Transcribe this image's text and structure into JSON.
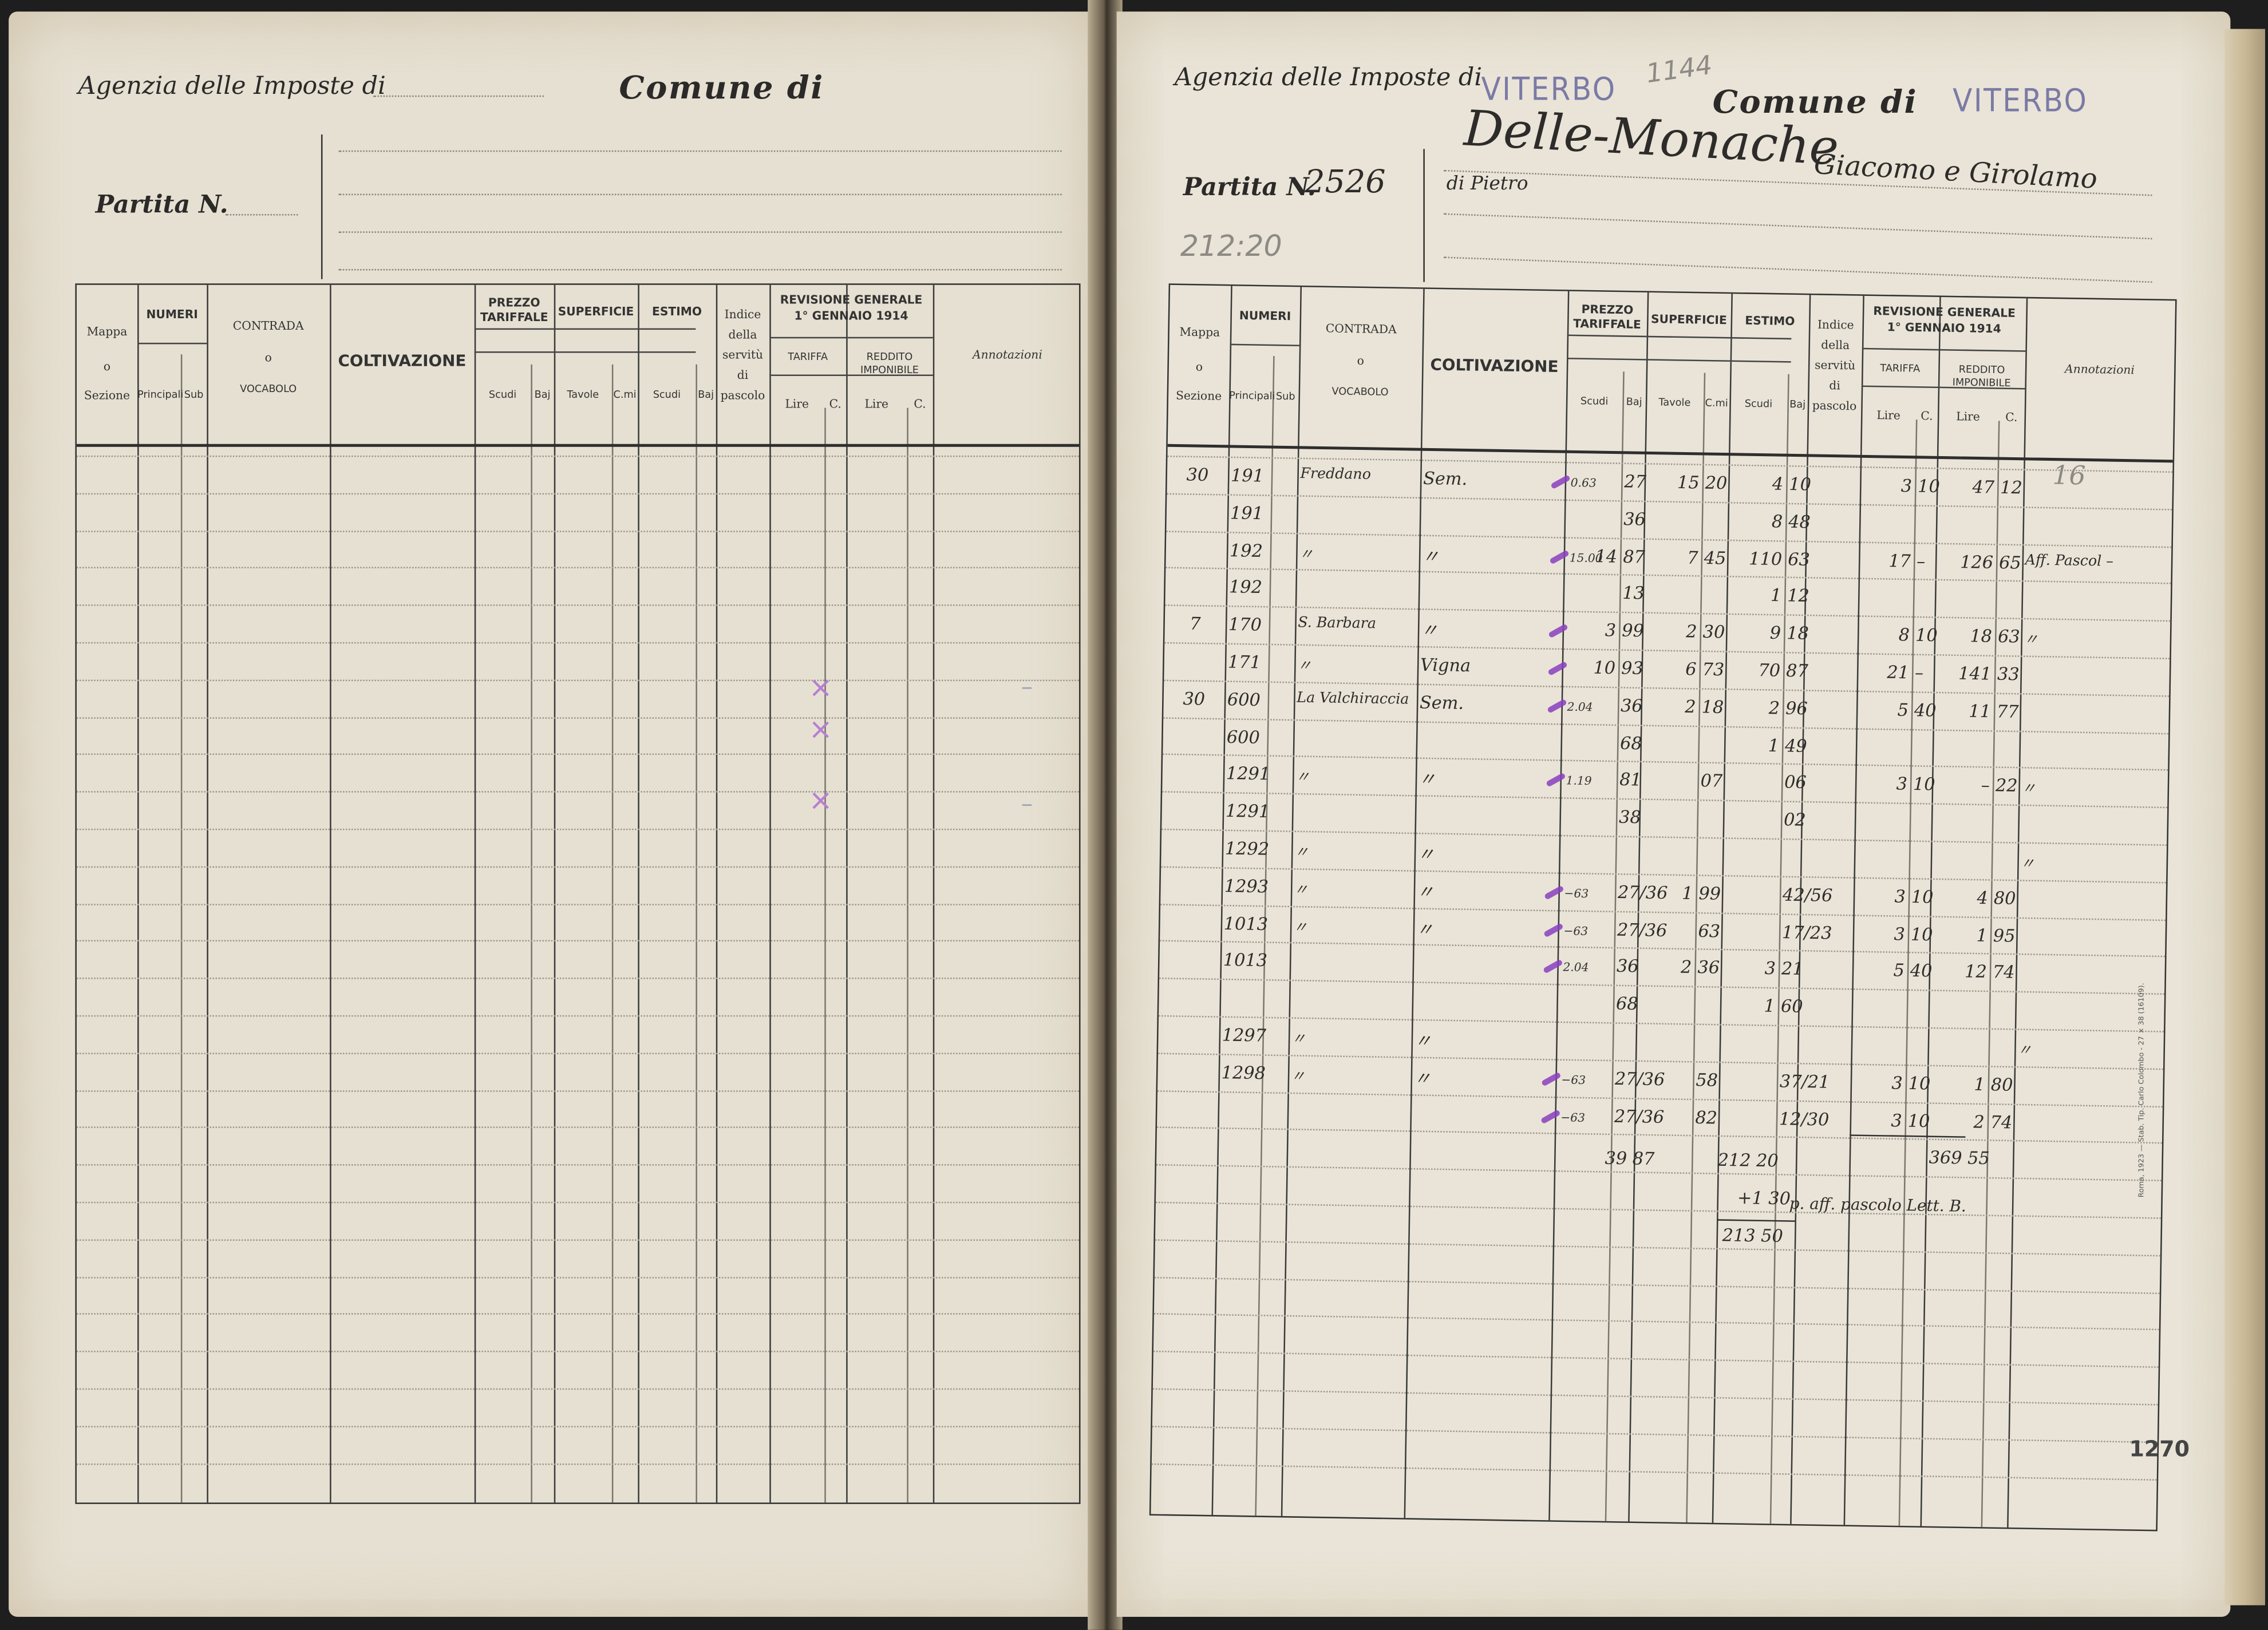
{
  "left_page": {
    "agency_label": "Agenzia delle Imposte di",
    "comune_label": "Comune di",
    "partita_label": "Partita N.",
    "x_marks": [
      "×",
      "×",
      "×"
    ],
    "dash_marks": [
      "–",
      "–"
    ]
  },
  "right_page": {
    "agency_label": "Agenzia delle Imposte di",
    "agency_stamp": "VITERBO",
    "pencil_number": "1144",
    "comune_label": "Comune di",
    "comune_stamp": "VITERBO",
    "partita_label": "Partita N.",
    "partita_number": "2526",
    "pencil_total": "212:20",
    "owner_name": "Delle-Monache",
    "owner_given": "Giacomo e Girolamo",
    "owner_father": "di Pietro",
    "annotation_number": "16",
    "totals": {
      "superficie_subtotal": "39 87",
      "estimo_subtotal": "212 20",
      "estimo_addition": "+1 30",
      "estimo_total": "213 50",
      "reddito_total": "369 55",
      "note": "p. aff. pascolo Lett. B."
    },
    "printer_note": "Roma, 1923 — Stab. Tip. Carlo Colombo - 27 × 38 (16109).",
    "page_number": "1270"
  },
  "table_header": {
    "mappa": [
      "Mappa",
      "o",
      "Sezione"
    ],
    "numeri": "NUMERI",
    "principali": "Principali",
    "sub": "Sub",
    "contrada": [
      "CONTRADA",
      "o",
      "VOCABOLO"
    ],
    "coltivazione": "COLTIVAZIONE",
    "prezzo": [
      "PREZZO",
      "TARIFFALE"
    ],
    "superficie": "SUPERFICIE",
    "estimo": "ESTIMO",
    "scudi": "Scudi",
    "baj": "Baj",
    "tavole": "Tavole",
    "cmi": "C.mi",
    "indice": [
      "Indice",
      "della",
      "servitù",
      "di",
      "pascolo"
    ],
    "revisione": [
      "REVISIONE GENERALE",
      "1° GENNAIO 1914"
    ],
    "tariffa": "TARIFFA",
    "reddito": "REDDITO IMPONIBILE",
    "lire": "Lire",
    "c": "C.",
    "annotazioni": "Annotazioni"
  },
  "rows": [
    {
      "mappa": "30",
      "num": "191",
      "contrada": "Freddano",
      "coltiv": "Sem.",
      "bracket": "0.63",
      "prezzo_b": "27",
      "sup_t": "15",
      "sup_c": "20",
      "est_s": "4",
      "est_b": "10",
      "tar_l": "3",
      "tar_c": "10",
      "red_l": "47",
      "red_c": "12",
      "mark": true
    },
    {
      "num": "191",
      "prezzo_b": "36",
      "est_s": "8",
      "est_b": "48"
    },
    {
      "num": "192",
      "contrada": "〃",
      "coltiv": "〃",
      "bracket": "15.00",
      "prezzo_s": "14",
      "prezzo_b": "87",
      "sup_t": "7",
      "sup_c": "45",
      "est_s": "110",
      "est_b": "63",
      "tar_l": "17",
      "tar_c": "–",
      "red_l": "126",
      "red_c": "65",
      "annot": "Aff. Pascol –",
      "mark": true
    },
    {
      "num": "192",
      "prezzo_b": "13",
      "est_s": "1",
      "est_b": "12"
    },
    {
      "mappa": "7",
      "num": "170",
      "contrada": "S. Barbara",
      "coltiv": "〃",
      "prezzo_s": "3",
      "prezzo_b": "99",
      "sup_t": "2",
      "sup_c": "30",
      "est_s": "9",
      "est_b": "18",
      "tar_l": "8",
      "tar_c": "10",
      "red_l": "18",
      "red_c": "63",
      "annot": "〃",
      "mark": true
    },
    {
      "num": "171",
      "contrada": "〃",
      "coltiv": "Vigna",
      "prezzo_s": "10",
      "prezzo_b": "93",
      "sup_t": "6",
      "sup_c": "73",
      "est_s": "70",
      "est_b": "87",
      "tar_l": "21",
      "tar_c": "–",
      "red_l": "141",
      "red_c": "33",
      "mark": true
    },
    {
      "mappa": "30",
      "num": "600",
      "contrada": "La Valchiraccia",
      "coltiv": "Sem.",
      "bracket": "2.04",
      "prezzo_b": "36",
      "sup_t": "2",
      "sup_c": "18",
      "est_s": "2",
      "est_b": "96",
      "tar_l": "5",
      "tar_c": "40",
      "red_l": "11",
      "red_c": "77",
      "mark": true
    },
    {
      "num": "600",
      "prezzo_b": "68",
      "est_s": "1",
      "est_b": "49"
    },
    {
      "num": "1291",
      "contrada": "〃",
      "coltiv": "〃",
      "bracket": "1.19",
      "prezzo_b": "81",
      "sup_c": "07",
      "est_b": "06",
      "tar_l": "3",
      "tar_c": "10",
      "red_l": "–",
      "red_c": "22",
      "annot": "〃",
      "mark": true
    },
    {
      "num": "1291",
      "prezzo_b": "38",
      "est_b": "02"
    },
    {
      "num": "1292",
      "contrada": "〃",
      "coltiv": "〃",
      "annot": "〃"
    },
    {
      "num": "1293",
      "contrada": "〃",
      "coltiv": "〃",
      "bracket": "−63",
      "prezzo_b": "27/36",
      "sup_t": "1",
      "sup_c": "99",
      "est_b": "42/56",
      "tar_l": "3",
      "tar_c": "10",
      "red_l": "4",
      "red_c": "80",
      "mark": true
    },
    {
      "num": "1013",
      "contrada": "〃",
      "coltiv": "〃",
      "bracket": "−63",
      "prezzo_b": "27/36",
      "sup_c": "63",
      "est_b": "17/23",
      "tar_l": "3",
      "tar_c": "10",
      "red_l": "1",
      "red_c": "95",
      "mark": true
    },
    {
      "num": "1013",
      "bracket": "2.04",
      "prezzo_b": "36",
      "sup_t": "2",
      "sup_c": "36",
      "est_s": "3",
      "est_b": "21",
      "tar_l": "5",
      "tar_c": "40",
      "red_l": "12",
      "red_c": "74",
      "mark": true
    },
    {
      "prezzo_b": "68",
      "est_s": "1",
      "est_b": "60"
    },
    {
      "num": "1297",
      "contrada": "〃",
      "coltiv": "〃",
      "annot": "〃"
    },
    {
      "num": "1298",
      "contrada": "〃",
      "coltiv": "〃",
      "bracket": "−63",
      "prezzo_b": "27/36",
      "sup_c": "58",
      "est_b": "37/21",
      "tar_l": "3",
      "tar_c": "10",
      "red_l": "1",
      "red_c": "80",
      "mark": true
    },
    {
      "bracket": "−63",
      "prezzo_b": "27/36",
      "sup_c": "82",
      "est_b": "12/30",
      "tar_l": "3",
      "tar_c": "10",
      "red_l": "2",
      "red_c": "74",
      "mark": true
    }
  ],
  "colors": {
    "paper": "#e6e0d2",
    "ink": "#2e2c2a",
    "stamp": "#7b7aa6",
    "purple_mark": "#8a3fc0"
  }
}
